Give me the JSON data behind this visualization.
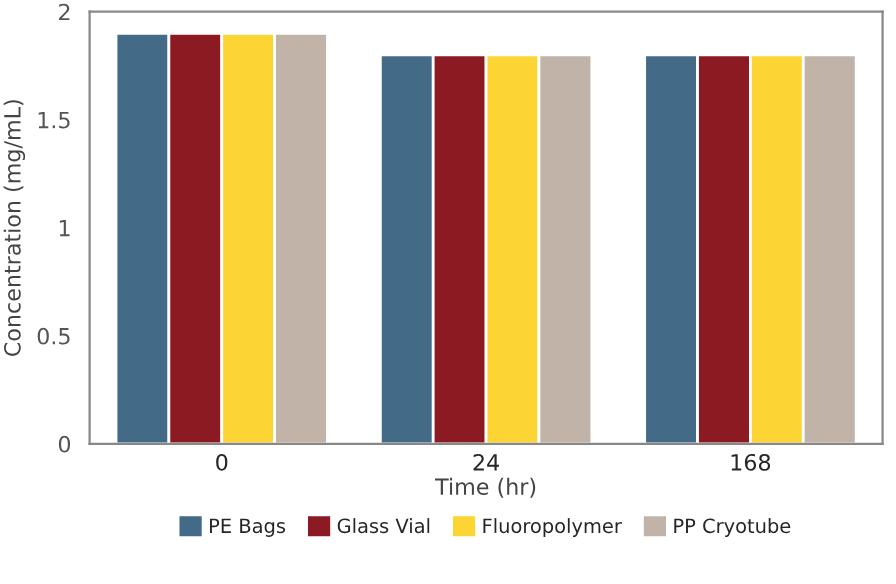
{
  "chart_data": {
    "type": "bar",
    "xlabel": "Time (hr)",
    "ylabel": "Concentration (mg/mL)",
    "categories": [
      "0",
      "24",
      "168"
    ],
    "series": [
      {
        "name": "PE Bags",
        "color": "#436a86",
        "values": [
          1.9,
          1.8,
          1.8
        ]
      },
      {
        "name": "Glass Vial",
        "color": "#8b1a22",
        "values": [
          1.9,
          1.8,
          1.8
        ]
      },
      {
        "name": "Fluoropolymer",
        "color": "#fcd535",
        "values": [
          1.9,
          1.8,
          1.8
        ]
      },
      {
        "name": "PP Cryotube",
        "color": "#c2b3a8",
        "values": [
          1.9,
          1.8,
          1.8
        ]
      }
    ],
    "ylim": [
      0,
      2
    ],
    "yticks": [
      0,
      0.5,
      1,
      1.5,
      2
    ],
    "grid": false,
    "legend": "bottom"
  }
}
